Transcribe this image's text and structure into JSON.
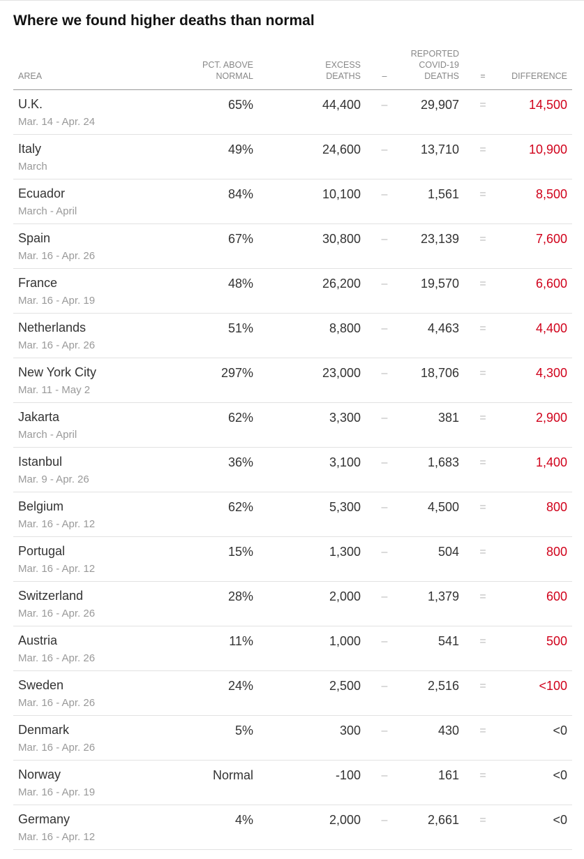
{
  "title": "Where we found higher deaths than normal",
  "table": {
    "headers": {
      "area": [
        "AREA"
      ],
      "pct": [
        "PCT. ABOVE",
        "NORMAL"
      ],
      "excess": [
        "EXCESS",
        "DEATHS"
      ],
      "minus": [
        "–"
      ],
      "reported": [
        "REPORTED",
        "COVID-19",
        "DEATHS"
      ],
      "equals": [
        "="
      ],
      "difference": [
        "DIFFERENCE"
      ]
    },
    "operators": {
      "minus": "–",
      "equals": "="
    },
    "highlight_color": "#d0021b",
    "rows": [
      {
        "area": "U.K.",
        "dates": "Mar. 14 - Apr. 24",
        "pct": "65%",
        "excess": "44,400",
        "reported": "29,907",
        "difference": "14,500",
        "highlight": true
      },
      {
        "area": "Italy",
        "dates": "March",
        "pct": "49%",
        "excess": "24,600",
        "reported": "13,710",
        "difference": "10,900",
        "highlight": true
      },
      {
        "area": "Ecuador",
        "dates": "March - April",
        "pct": "84%",
        "excess": "10,100",
        "reported": "1,561",
        "difference": "8,500",
        "highlight": true
      },
      {
        "area": "Spain",
        "dates": "Mar. 16 - Apr. 26",
        "pct": "67%",
        "excess": "30,800",
        "reported": "23,139",
        "difference": "7,600",
        "highlight": true
      },
      {
        "area": "France",
        "dates": "Mar. 16 - Apr. 19",
        "pct": "48%",
        "excess": "26,200",
        "reported": "19,570",
        "difference": "6,600",
        "highlight": true
      },
      {
        "area": "Netherlands",
        "dates": "Mar. 16 - Apr. 26",
        "pct": "51%",
        "excess": "8,800",
        "reported": "4,463",
        "difference": "4,400",
        "highlight": true
      },
      {
        "area": "New York City",
        "dates": "Mar. 11 - May 2",
        "pct": "297%",
        "excess": "23,000",
        "reported": "18,706",
        "difference": "4,300",
        "highlight": true
      },
      {
        "area": "Jakarta",
        "dates": "March - April",
        "pct": "62%",
        "excess": "3,300",
        "reported": "381",
        "difference": "2,900",
        "highlight": true
      },
      {
        "area": "Istanbul",
        "dates": "Mar. 9 - Apr. 26",
        "pct": "36%",
        "excess": "3,100",
        "reported": "1,683",
        "difference": "1,400",
        "highlight": true
      },
      {
        "area": "Belgium",
        "dates": "Mar. 16 - Apr. 12",
        "pct": "62%",
        "excess": "5,300",
        "reported": "4,500",
        "difference": "800",
        "highlight": true
      },
      {
        "area": "Portugal",
        "dates": "Mar. 16 - Apr. 12",
        "pct": "15%",
        "excess": "1,300",
        "reported": "504",
        "difference": "800",
        "highlight": true
      },
      {
        "area": "Switzerland",
        "dates": "Mar. 16 - Apr. 26",
        "pct": "28%",
        "excess": "2,000",
        "reported": "1,379",
        "difference": "600",
        "highlight": true
      },
      {
        "area": "Austria",
        "dates": "Mar. 16 - Apr. 26",
        "pct": "11%",
        "excess": "1,000",
        "reported": "541",
        "difference": "500",
        "highlight": true
      },
      {
        "area": "Sweden",
        "dates": "Mar. 16 - Apr. 26",
        "pct": "24%",
        "excess": "2,500",
        "reported": "2,516",
        "difference": "<100",
        "highlight": true
      },
      {
        "area": "Denmark",
        "dates": "Mar. 16 - Apr. 26",
        "pct": "5%",
        "excess": "300",
        "reported": "430",
        "difference": "<0",
        "highlight": false
      },
      {
        "area": "Norway",
        "dates": "Mar. 16 - Apr. 19",
        "pct": "Normal",
        "excess": "-100",
        "reported": "161",
        "difference": "<0",
        "highlight": false
      },
      {
        "area": "Germany",
        "dates": "Mar. 16 - Apr. 12",
        "pct": "4%",
        "excess": "2,000",
        "reported": "2,661",
        "difference": "<0",
        "highlight": false
      }
    ]
  }
}
